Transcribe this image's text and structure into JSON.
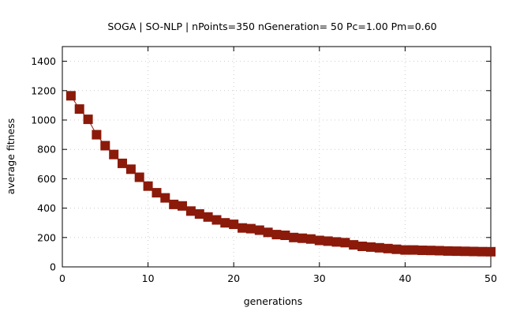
{
  "chart_data": {
    "type": "line",
    "title": "SOGA  |  SO-NLP  |  nPoints=350  nGeneration= 50  Pc=1.00  Pm=0.60",
    "xlabel": "generations",
    "ylabel": "average fitness",
    "xlim": [
      0,
      50
    ],
    "ylim": [
      0,
      1500
    ],
    "xticks": [
      0,
      10,
      20,
      30,
      40,
      50
    ],
    "yticks": [
      0,
      200,
      400,
      600,
      800,
      1000,
      1200,
      1400
    ],
    "grid": true,
    "legend": "none",
    "series": [
      {
        "color": "#8b1a0a",
        "marker": "square",
        "x": [
          1,
          2,
          3,
          4,
          5,
          6,
          7,
          8,
          9,
          10,
          11,
          12,
          13,
          14,
          15,
          16,
          17,
          18,
          19,
          20,
          21,
          22,
          23,
          24,
          25,
          26,
          27,
          28,
          29,
          30,
          31,
          32,
          33,
          34,
          35,
          36,
          37,
          38,
          39,
          40,
          41,
          42,
          43,
          44,
          45,
          46,
          47,
          48,
          49,
          50
        ],
        "y": [
          1165,
          1075,
          1005,
          900,
          825,
          765,
          705,
          665,
          610,
          550,
          505,
          470,
          425,
          415,
          380,
          360,
          340,
          320,
          300,
          290,
          265,
          260,
          250,
          235,
          220,
          215,
          200,
          195,
          190,
          180,
          175,
          170,
          165,
          150,
          140,
          135,
          130,
          125,
          120,
          115,
          115,
          113,
          112,
          110,
          108,
          107,
          106,
          105,
          104,
          103
        ]
      }
    ]
  }
}
